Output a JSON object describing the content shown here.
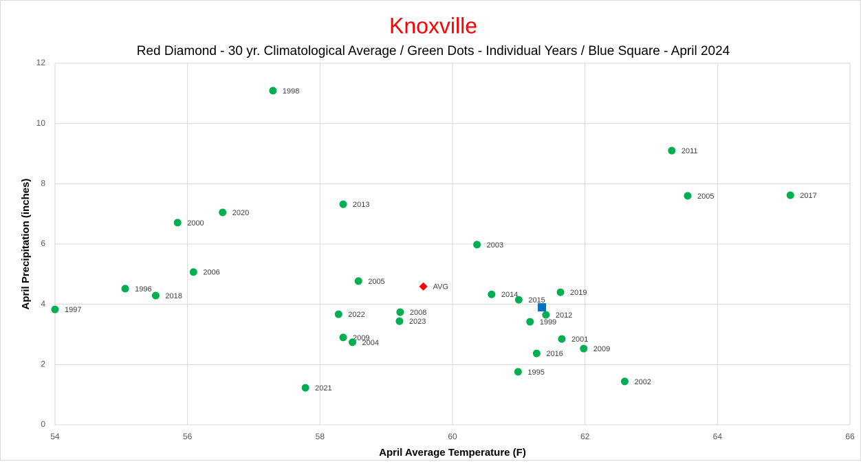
{
  "chart_data": {
    "type": "scatter",
    "title": "Knoxville",
    "subtitle": "Red Diamond - 30 yr. Climatological Average / Green Dots - Individual Years / Blue Square - April 2024",
    "x_label": "April Average Temperature  (F)",
    "y_label": "April Precipitation  (inches)",
    "xlim": [
      54,
      66
    ],
    "ylim": [
      0,
      12
    ],
    "xticks": [
      54,
      56,
      58,
      60,
      62,
      64,
      66
    ],
    "yticks": [
      0,
      2,
      4,
      6,
      8,
      10,
      12
    ],
    "grid": true,
    "series": [
      {
        "color": "#00b050",
        "marker": "circle",
        "x": [
          57.29,
          63.31,
          63.55,
          65.1,
          56.53,
          55.85,
          58.35,
          60.37,
          56.09,
          58.58,
          55.06,
          55.52,
          54.0,
          60.59,
          61.0,
          61.63,
          61.41,
          59.21,
          58.28,
          59.2,
          61.17,
          58.35,
          58.49,
          61.65,
          61.98,
          61.27,
          60.99,
          62.6,
          57.78
        ],
        "values": [
          11.09,
          9.1,
          7.6,
          7.62,
          7.05,
          6.71,
          7.32,
          5.98,
          5.07,
          4.77,
          4.52,
          4.29,
          3.83,
          4.33,
          4.15,
          4.4,
          3.65,
          3.74,
          3.67,
          3.44,
          3.42,
          2.9,
          2.74,
          2.85,
          2.53,
          2.37,
          1.76,
          1.44,
          1.23
        ],
        "labels": [
          "1998",
          "2011",
          "2005",
          "2017",
          "2020",
          "2000",
          "2013",
          "2003",
          "2006",
          "2005",
          "1996",
          "2018",
          "1997",
          "2014",
          "2015",
          "2019",
          "2012",
          "2008",
          "2022",
          "2023",
          "1999",
          "2009",
          "2004",
          "2001",
          "2009",
          "2016",
          "1995",
          "2002",
          "2021"
        ]
      },
      {
        "color": "#ff0000",
        "marker": "diamond",
        "x": [
          59.56
        ],
        "values": [
          4.59
        ],
        "labels": [
          "AVG"
        ]
      },
      {
        "color": "#0070c0",
        "marker": "square",
        "x": [
          61.35
        ],
        "values": [
          3.9
        ]
      }
    ]
  }
}
